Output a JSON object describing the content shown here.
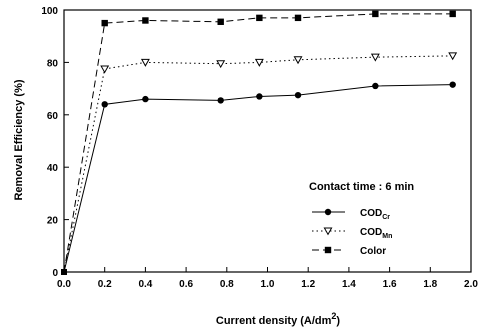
{
  "chart_data": {
    "type": "line",
    "xlabel": "Current density (A/dm",
    "xlabel_sup": "2",
    "xlabel_close": ")",
    "ylabel": "Removal Efficiency (%)",
    "xlim": [
      0,
      2.0
    ],
    "ylim": [
      0,
      100
    ],
    "x_ticks": [
      "0.0",
      "0.2",
      "0.4",
      "0.6",
      "0.8",
      "1.0",
      "1.2",
      "1.4",
      "1.6",
      "1.8",
      "2.0"
    ],
    "y_ticks": [
      "0",
      "20",
      "40",
      "60",
      "80",
      "100"
    ],
    "grid": false,
    "legend_position": "bottom-right",
    "legend_title": "Contact time : 6 min",
    "series": [
      {
        "name": "COD",
        "subscript": "Cr",
        "marker": "circle-filled",
        "line_style": "solid",
        "x": [
          0,
          0.2,
          0.4,
          0.77,
          0.96,
          1.15,
          1.53,
          1.91
        ],
        "y": [
          0,
          64,
          66,
          65.5,
          67,
          67.5,
          71,
          71.5
        ]
      },
      {
        "name": "COD",
        "subscript": "Mn",
        "marker": "triangle-open",
        "line_style": "dotted",
        "x": [
          0,
          0.2,
          0.4,
          0.77,
          0.96,
          1.15,
          1.53,
          1.91
        ],
        "y": [
          0,
          77.5,
          80,
          79.5,
          80,
          81,
          82,
          82.5
        ]
      },
      {
        "name": "Color",
        "marker": "square-filled",
        "line_style": "dashed",
        "x": [
          0,
          0.2,
          0.4,
          0.77,
          0.96,
          1.15,
          1.53,
          1.91
        ],
        "y": [
          0,
          95,
          96,
          95.5,
          97,
          97,
          98.5,
          98.5
        ]
      }
    ]
  }
}
